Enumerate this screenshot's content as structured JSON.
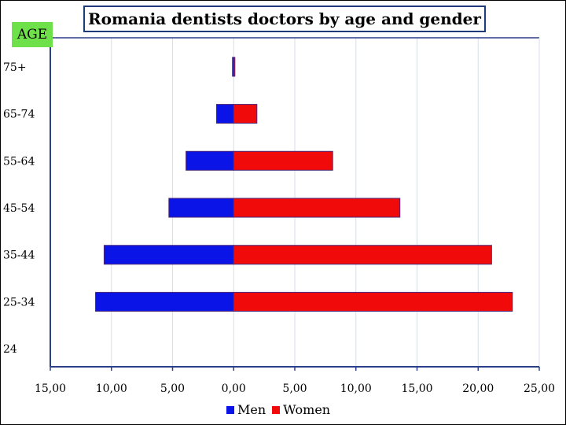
{
  "chart_data": {
    "type": "bar",
    "orientation": "horizontal",
    "title": "Romania dentists doctors by age and gender",
    "ylabel": "AGE",
    "categories": [
      "75+",
      "65-74",
      "55-64",
      "45-54",
      "35-44",
      "25-34",
      "24"
    ],
    "x_ticks": [
      "15,00",
      "10,00",
      "5,00",
      "0,00",
      "5,00",
      "10,00",
      "15,00",
      "20,00",
      "25,00"
    ],
    "xlim": [
      -15,
      25
    ],
    "series": [
      {
        "name": "Men",
        "color": "#0a14e6",
        "values": [
          -0.1,
          -1.4,
          -3.9,
          -5.3,
          -10.6,
          -11.3,
          0
        ]
      },
      {
        "name": "Women",
        "color": "#f00a0a",
        "values": [
          0.1,
          1.9,
          8.1,
          13.6,
          21.1,
          22.8,
          0
        ]
      }
    ],
    "legend_position": "bottom-center"
  }
}
